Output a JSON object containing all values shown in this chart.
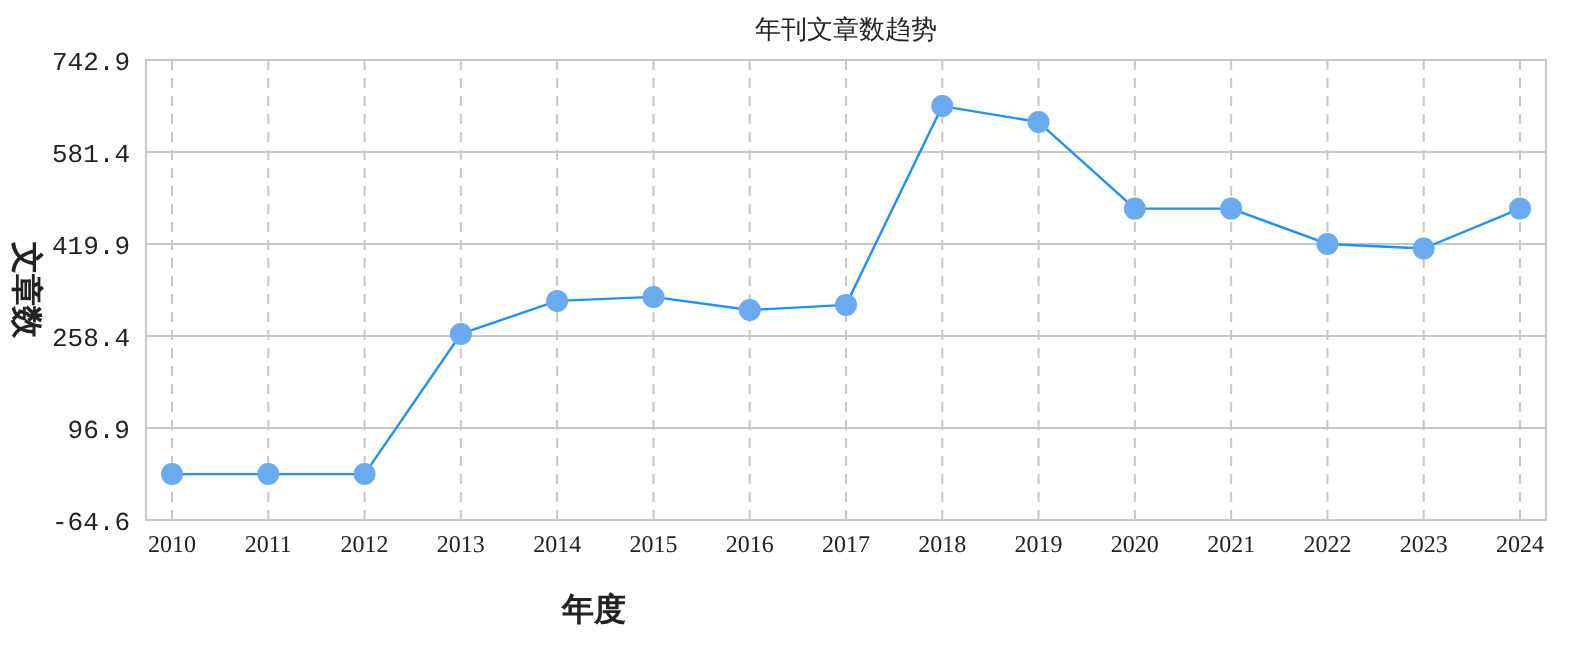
{
  "chart_data": {
    "type": "line",
    "title": "年刊文章数趋势",
    "xlabel": "年度",
    "ylabel": "文章数",
    "categories": [
      "2010",
      "2011",
      "2012",
      "2013",
      "2014",
      "2015",
      "2016",
      "2017",
      "2018",
      "2019",
      "2020",
      "2021",
      "2022",
      "2023",
      "2024"
    ],
    "series": [
      {
        "color": "#1e90ff",
        "values": [
          16,
          16,
          16,
          262,
          320,
          327,
          304,
          313,
          662,
          634,
          482,
          482,
          420,
          412,
          482
        ]
      }
    ],
    "ylim": [
      -64.6,
      742.9
    ],
    "yticks": [
      -64.6,
      96.9,
      258.4,
      419.9,
      581.4,
      742.9
    ],
    "grid": true,
    "marker": "circle",
    "line_style": "solid"
  }
}
